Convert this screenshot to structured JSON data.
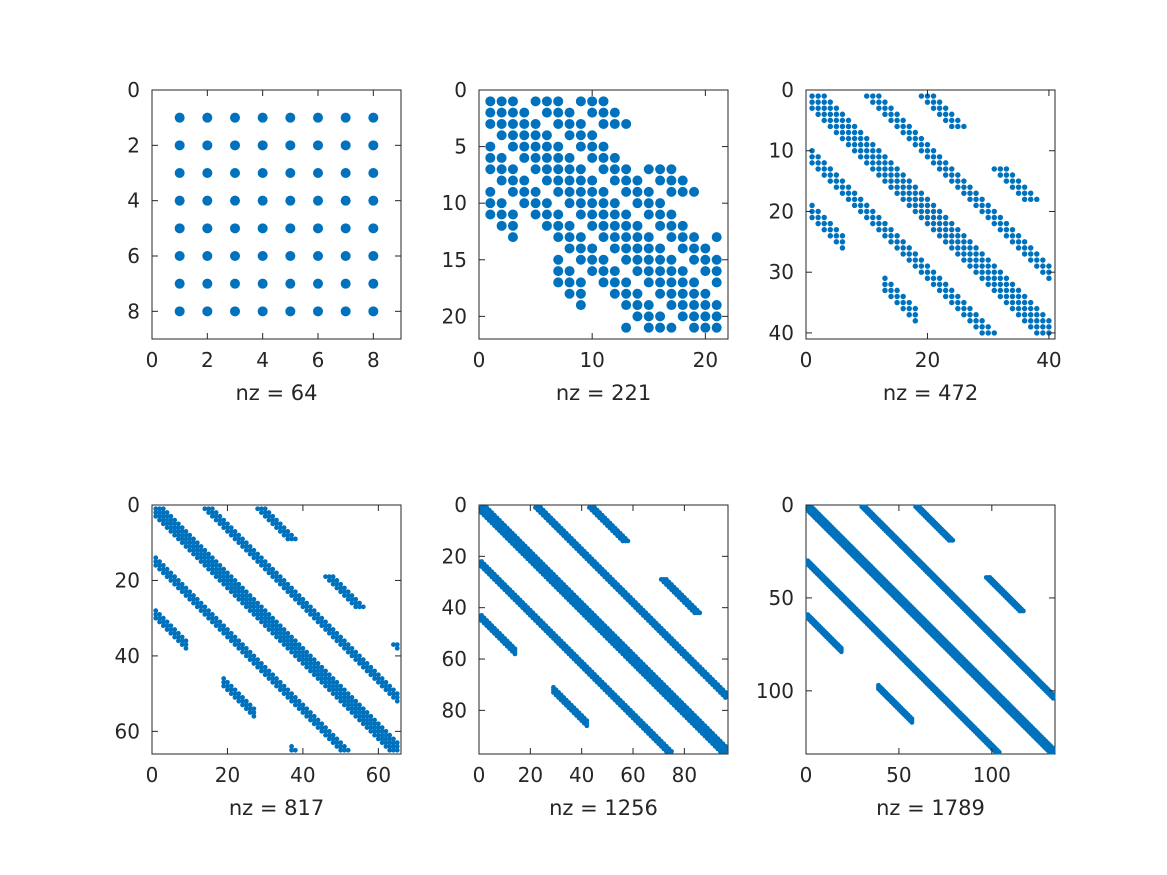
{
  "colors": {
    "marker": "#0072BD",
    "axis": "#262626",
    "background": "#ffffff"
  },
  "chart_data": [
    {
      "type": "spy",
      "n": 8,
      "nz": 64,
      "xlabel": "nz = 64",
      "xlim": [
        0,
        9
      ],
      "ylim": [
        0,
        9
      ],
      "xticks": [
        0,
        2,
        4,
        6,
        8
      ],
      "yticks": [
        0,
        2,
        4,
        6,
        8
      ],
      "pattern": "full"
    },
    {
      "type": "spy",
      "n": 21,
      "nz": 221,
      "xlabel": "nz = 221",
      "xlim": [
        0,
        22
      ],
      "ylim": [
        0,
        22
      ],
      "xticks": [
        0,
        10,
        20
      ],
      "yticks": [
        0,
        5,
        10,
        15,
        20
      ],
      "pattern": "grid-laplacian"
    },
    {
      "type": "spy",
      "n": 40,
      "nz": 472,
      "xlabel": "nz = 472",
      "xlim": [
        0,
        41
      ],
      "ylim": [
        0,
        41
      ],
      "xticks": [
        0,
        20,
        40
      ],
      "yticks": [
        0,
        10,
        20,
        30,
        40
      ],
      "pattern": "grid-laplacian"
    },
    {
      "type": "spy",
      "n": 65,
      "nz": 817,
      "xlabel": "nz = 817",
      "xlim": [
        0,
        66
      ],
      "ylim": [
        0,
        66
      ],
      "xticks": [
        0,
        20,
        40,
        60
      ],
      "yticks": [
        0,
        20,
        40,
        60
      ],
      "pattern": "grid-laplacian"
    },
    {
      "type": "spy",
      "n": 96,
      "nz": 1256,
      "xlabel": "nz = 1256",
      "xlim": [
        0,
        97
      ],
      "ylim": [
        0,
        97
      ],
      "xticks": [
        0,
        20,
        40,
        60,
        80
      ],
      "yticks": [
        0,
        20,
        40,
        60,
        80
      ],
      "pattern": "grid-laplacian"
    },
    {
      "type": "spy",
      "n": 133,
      "nz": 1789,
      "xlabel": "nz = 1789",
      "xlim": [
        0,
        134
      ],
      "ylim": [
        0,
        134
      ],
      "xticks": [
        0,
        50,
        100
      ],
      "yticks": [
        0,
        50,
        100
      ],
      "pattern": "grid-laplacian"
    }
  ]
}
